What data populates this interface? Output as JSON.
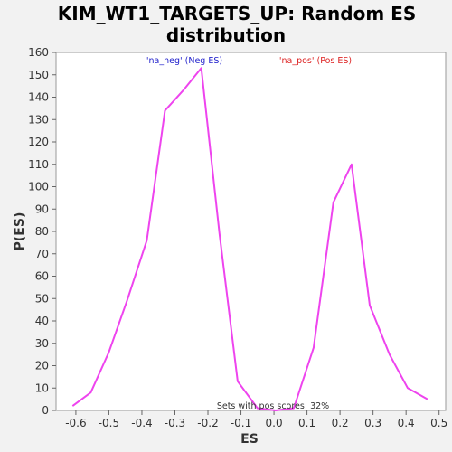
{
  "chart_data": {
    "type": "line",
    "title_lines": [
      "KIM_WT1_TARGETS_UP: Random ES",
      "distribution"
    ],
    "xlabel": "ES",
    "ylabel": "P(ES)",
    "xlim": [
      -0.66,
      0.52
    ],
    "ylim": [
      0,
      160
    ],
    "x_ticks": [
      -0.6,
      -0.5,
      -0.4,
      -0.3,
      -0.2,
      -0.1,
      0.0,
      0.1,
      0.2,
      0.3,
      0.4,
      0.5
    ],
    "x_tick_labels": [
      "-0.6",
      "-0.5",
      "-0.4",
      "-0.3",
      "-0.2",
      "-0.1",
      "0.0",
      "0.1",
      "0.2",
      "0.3",
      "0.4",
      "0.5"
    ],
    "y_ticks": [
      0,
      10,
      20,
      30,
      40,
      50,
      60,
      70,
      80,
      90,
      100,
      110,
      120,
      130,
      140,
      150,
      160
    ],
    "y_tick_labels": [
      "0",
      "10",
      "20",
      "30",
      "40",
      "50",
      "60",
      "70",
      "80",
      "90",
      "100",
      "110",
      "120",
      "130",
      "140",
      "150",
      "160"
    ],
    "series": [
      {
        "name": "ES distribution",
        "color": "#ee44ee",
        "x": [
          -0.61,
          -0.555,
          -0.5,
          -0.445,
          -0.385,
          -0.33,
          -0.275,
          -0.22,
          -0.165,
          -0.11,
          -0.05,
          0.005,
          0.06,
          0.12,
          0.18,
          0.235,
          0.29,
          0.35,
          0.405,
          0.465
        ],
        "y": [
          2,
          8,
          26,
          49,
          76,
          134,
          143,
          153,
          79,
          13,
          1,
          0,
          1,
          28,
          93,
          110,
          47,
          25,
          10,
          5
        ]
      }
    ],
    "legend": [
      {
        "label": "'na_neg' (Neg ES)",
        "color": "#2222cc"
      },
      {
        "label": "'na_pos' (Pos ES)",
        "color": "#dd2222"
      }
    ],
    "annotation": "Sets with pos scores: 32%"
  }
}
